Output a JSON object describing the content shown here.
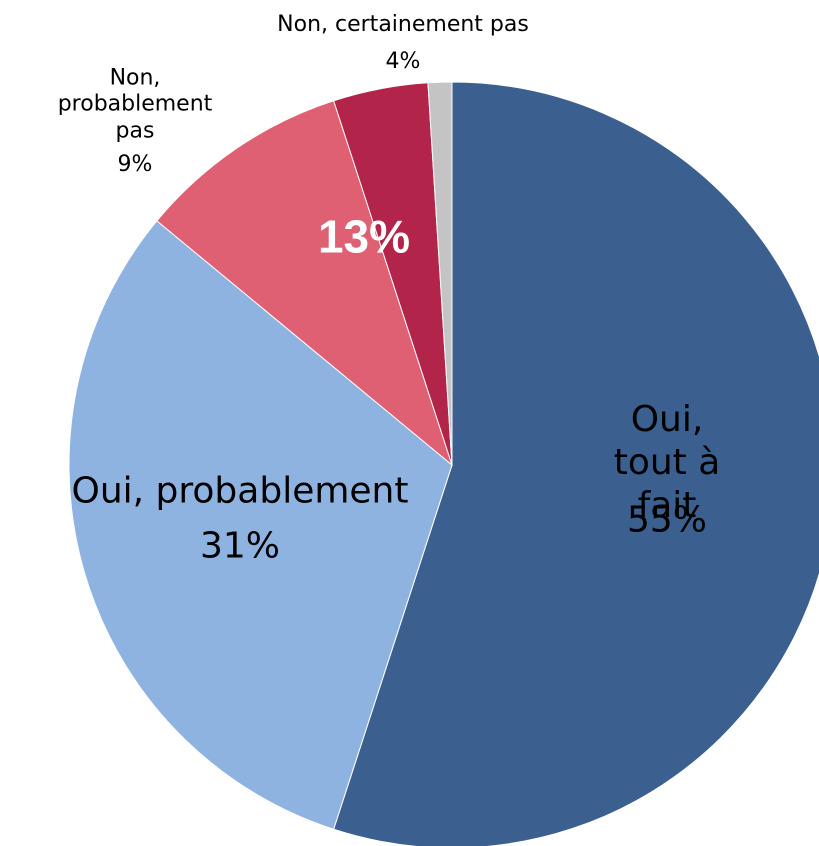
{
  "chart_data": {
    "type": "pie",
    "categories": [
      "Oui, tout à fait",
      "Oui, probablement",
      "Non, probablement pas",
      "Non, certainement pas",
      null
    ],
    "values": [
      55,
      31,
      9,
      4,
      1
    ],
    "value_labels": [
      "55%",
      "31%",
      "9%",
      "4%",
      null
    ],
    "colors": [
      "#3b5f8e",
      "#8fb3e0",
      "#de6072",
      "#b3244b",
      "#c4c4c4"
    ],
    "annotation": "13%"
  }
}
